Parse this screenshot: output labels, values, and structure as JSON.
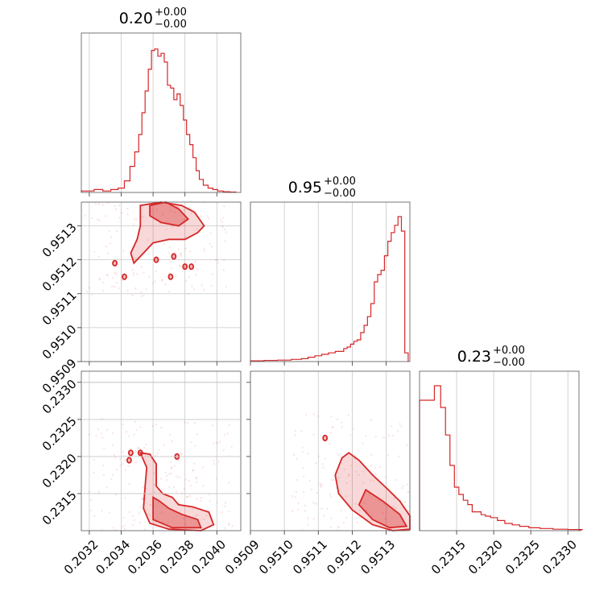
{
  "chart_data": {
    "type": "corner",
    "color": "#d62728",
    "parameters": [
      {
        "title_value": "0.20",
        "title_plus": "+0.00",
        "title_minus": "−0.00",
        "range": [
          0.20315,
          0.20415
        ],
        "ticks": [
          {
            "v": 0.2032,
            "label": "0.2032"
          },
          {
            "v": 0.2034,
            "label": "0.2034"
          },
          {
            "v": 0.2036,
            "label": "0.2036"
          },
          {
            "v": 0.2038,
            "label": "0.2038"
          },
          {
            "v": 0.204,
            "label": "0.2040"
          }
        ]
      },
      {
        "title_value": "0.95",
        "title_plus": "+0.00",
        "title_minus": "−0.00",
        "range": [
          0.9509,
          0.95137
        ],
        "ticks": [
          {
            "v": 0.9509,
            "label": "0.9509"
          },
          {
            "v": 0.951,
            "label": "0.9510"
          },
          {
            "v": 0.9511,
            "label": "0.9511"
          },
          {
            "v": 0.9512,
            "label": "0.9512"
          },
          {
            "v": 0.9513,
            "label": "0.9513"
          }
        ]
      },
      {
        "title_value": "0.23",
        "title_plus": "+0.00",
        "title_minus": "−0.00",
        "range": [
          0.231,
          0.23315
        ],
        "ticks": [
          {
            "v": 0.2315,
            "label": "0.2315"
          },
          {
            "v": 0.232,
            "label": "0.2320"
          },
          {
            "v": 0.2325,
            "label": "0.2325"
          },
          {
            "v": 0.233,
            "label": "0.2330"
          }
        ]
      }
    ],
    "histograms": [
      {
        "x": [
          0.2032,
          0.20326,
          0.20331,
          0.20336,
          0.2034,
          0.20344,
          0.20347,
          0.2035,
          0.20352,
          0.20354,
          0.20356,
          0.20358,
          0.2036,
          0.20362,
          0.20364,
          0.20366,
          0.20368,
          0.2037,
          0.20372,
          0.20374,
          0.20376,
          0.20378,
          0.2038,
          0.20382,
          0.20384,
          0.20386,
          0.20388,
          0.2039,
          0.20393,
          0.20396,
          0.20399,
          0.20402,
          0.20406,
          0.2041
        ],
        "y": [
          0.01,
          0.02,
          0.01,
          0.02,
          0.03,
          0.08,
          0.18,
          0.28,
          0.4,
          0.55,
          0.7,
          0.85,
          0.98,
          0.99,
          0.94,
          0.96,
          0.9,
          0.74,
          0.72,
          0.64,
          0.68,
          0.6,
          0.5,
          0.4,
          0.33,
          0.24,
          0.15,
          0.09,
          0.05,
          0.03,
          0.02,
          0.01,
          0.005,
          0.003
        ]
      },
      {
        "x": [
          0.95092,
          0.95096,
          0.951,
          0.95104,
          0.95106,
          0.95108,
          0.9511,
          0.95112,
          0.95114,
          0.95116,
          0.95117,
          0.95118,
          0.95119,
          0.9512,
          0.95121,
          0.95122,
          0.95123,
          0.95124,
          0.95125,
          0.95126,
          0.95127,
          0.95128,
          0.95129,
          0.9513,
          0.95131,
          0.95132,
          0.95133,
          0.95134,
          0.95135,
          0.95136
        ],
        "y": [
          0.005,
          0.008,
          0.01,
          0.015,
          0.02,
          0.03,
          0.04,
          0.05,
          0.06,
          0.07,
          0.07,
          0.09,
          0.1,
          0.12,
          0.14,
          0.15,
          0.2,
          0.25,
          0.31,
          0.4,
          0.55,
          0.6,
          0.63,
          0.73,
          0.83,
          0.89,
          0.94,
          1.0,
          0.9,
          0.06
        ]
      },
      {
        "x": [
          0.23115,
          0.23125,
          0.23132,
          0.23138,
          0.23144,
          0.2315,
          0.23156,
          0.23162,
          0.23168,
          0.23174,
          0.2318,
          0.23186,
          0.23192,
          0.232,
          0.2321,
          0.2322,
          0.2323,
          0.2324,
          0.23255,
          0.2327,
          0.2329,
          0.2331
        ],
        "y": [
          0.9,
          1.0,
          0.85,
          0.66,
          0.45,
          0.3,
          0.25,
          0.21,
          0.18,
          0.13,
          0.13,
          0.11,
          0.1,
          0.09,
          0.07,
          0.05,
          0.04,
          0.03,
          0.02,
          0.015,
          0.01,
          0.008
        ]
      }
    ],
    "pairs": [
      {
        "x_param": 0,
        "y_param": 1,
        "outer_contour": [
          [
            0.20352,
            0.95136
          ],
          [
            0.20365,
            0.95137
          ],
          [
            0.20378,
            0.95136
          ],
          [
            0.20386,
            0.95134
          ],
          [
            0.20392,
            0.9513
          ],
          [
            0.20388,
            0.95128
          ],
          [
            0.2038,
            0.95126
          ],
          [
            0.2037,
            0.95126
          ],
          [
            0.2036,
            0.95125
          ],
          [
            0.20352,
            0.95121
          ],
          [
            0.20348,
            0.95119
          ],
          [
            0.20346,
            0.95122
          ],
          [
            0.2035,
            0.95126
          ],
          [
            0.20352,
            0.9513
          ]
        ],
        "inner_contour": [
          [
            0.20358,
            0.95136
          ],
          [
            0.20368,
            0.95137
          ],
          [
            0.20376,
            0.95135
          ],
          [
            0.20382,
            0.95132
          ],
          [
            0.20376,
            0.9513
          ],
          [
            0.20365,
            0.95131
          ],
          [
            0.20358,
            0.95133
          ]
        ],
        "islands": [
          [
            0.20336,
            0.95119
          ],
          [
            0.20342,
            0.95115
          ],
          [
            0.20362,
            0.9512
          ],
          [
            0.20373,
            0.95121
          ],
          [
            0.2038,
            0.95118
          ],
          [
            0.20371,
            0.95115
          ],
          [
            0.20384,
            0.95118
          ]
        ]
      },
      {
        "x_param": 0,
        "y_param": 2,
        "outer_contour": [
          [
            0.20352,
            0.23205
          ],
          [
            0.20356,
            0.23185
          ],
          [
            0.20355,
            0.2316
          ],
          [
            0.20354,
            0.2313
          ],
          [
            0.20358,
            0.2311
          ],
          [
            0.2037,
            0.23102
          ],
          [
            0.2039,
            0.231
          ],
          [
            0.20398,
            0.23108
          ],
          [
            0.20395,
            0.23125
          ],
          [
            0.20385,
            0.23132
          ],
          [
            0.20376,
            0.23135
          ],
          [
            0.20372,
            0.23145
          ],
          [
            0.20366,
            0.2315
          ],
          [
            0.20362,
            0.2316
          ],
          [
            0.20362,
            0.2319
          ],
          [
            0.20358,
            0.23203
          ]
        ],
        "inner_contour": [
          [
            0.2036,
            0.23145
          ],
          [
            0.2036,
            0.23115
          ],
          [
            0.20372,
            0.23104
          ],
          [
            0.2039,
            0.23104
          ],
          [
            0.20388,
            0.23115
          ],
          [
            0.20378,
            0.23122
          ],
          [
            0.2037,
            0.2313
          ],
          [
            0.20364,
            0.2314
          ]
        ],
        "islands": [
          [
            0.20346,
            0.23205
          ],
          [
            0.20352,
            0.23205
          ],
          [
            0.20375,
            0.232
          ],
          [
            0.20345,
            0.23195
          ]
        ]
      },
      {
        "x_param": 1,
        "y_param": 2,
        "outer_contour": [
          [
            0.95119,
            0.23205
          ],
          [
            0.95122,
            0.23195
          ],
          [
            0.95126,
            0.23175
          ],
          [
            0.9513,
            0.23158
          ],
          [
            0.95134,
            0.2314
          ],
          [
            0.95137,
            0.2312
          ],
          [
            0.95137,
            0.23102
          ],
          [
            0.95132,
            0.231
          ],
          [
            0.95126,
            0.23108
          ],
          [
            0.9512,
            0.23128
          ],
          [
            0.95116,
            0.2315
          ],
          [
            0.95115,
            0.23175
          ],
          [
            0.95117,
            0.23198
          ]
        ],
        "inner_contour": [
          [
            0.95124,
            0.23155
          ],
          [
            0.95129,
            0.2314
          ],
          [
            0.95134,
            0.23122
          ],
          [
            0.95136,
            0.23106
          ],
          [
            0.95131,
            0.23104
          ],
          [
            0.95126,
            0.23115
          ],
          [
            0.95122,
            0.23135
          ]
        ],
        "islands": [
          [
            0.95112,
            0.23225
          ]
        ]
      }
    ]
  }
}
